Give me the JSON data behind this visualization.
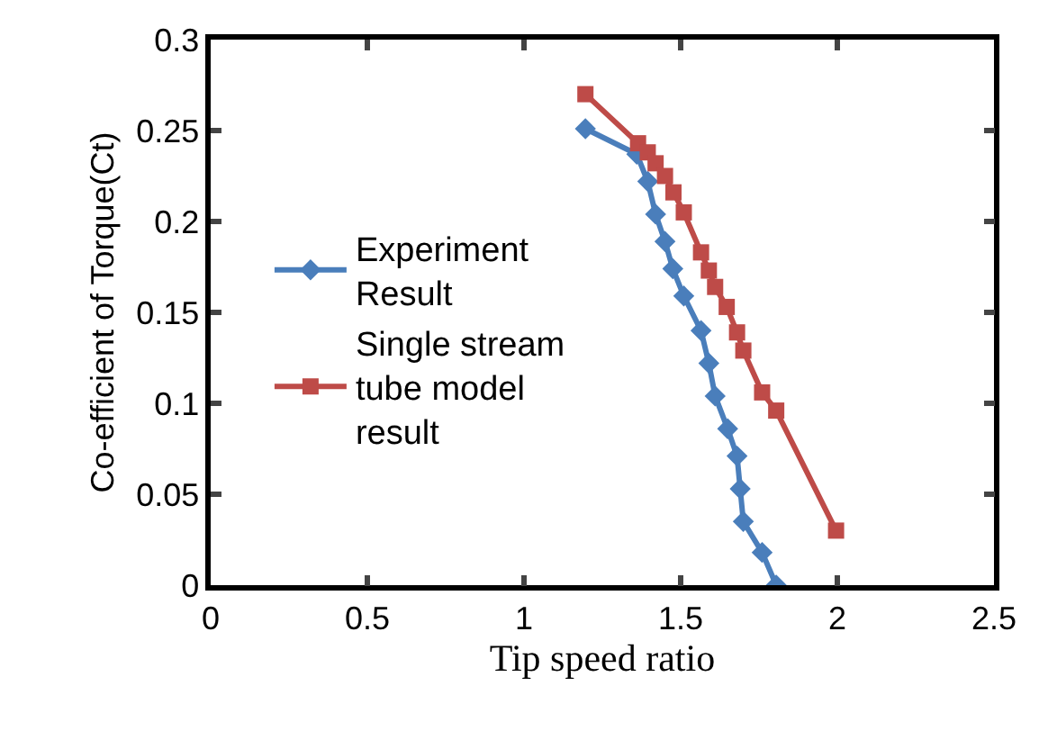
{
  "chart_data": {
    "type": "line",
    "xlabel": "Tip speed ratio",
    "ylabel": "Co-efficient of Torque(Ct)",
    "xlim": [
      0,
      2.5
    ],
    "xticks": [
      0,
      0.5,
      1,
      1.5,
      2,
      2.5
    ],
    "ylim": [
      0,
      0.3
    ],
    "yticks": [
      0,
      0.05,
      0.1,
      0.15,
      0.2,
      0.25,
      0.3
    ],
    "grid": false,
    "legend": "left",
    "series": [
      {
        "name": "Experiment Result",
        "color": "#4a7ebb",
        "marker": "diamond",
        "x": [
          1.196,
          1.36,
          1.395,
          1.42,
          1.45,
          1.475,
          1.51,
          1.565,
          1.59,
          1.61,
          1.65,
          1.68,
          1.69,
          1.7,
          1.76,
          1.805
        ],
        "values": [
          0.251,
          0.237,
          0.222,
          0.204,
          0.189,
          0.174,
          0.159,
          0.14,
          0.122,
          0.104,
          0.086,
          0.071,
          0.053,
          0.035,
          0.018,
          0
        ]
      },
      {
        "name": "Single stream tube model result",
        "color": "#be4b48",
        "marker": "square",
        "x": [
          1.196,
          1.364,
          1.395,
          1.42,
          1.45,
          1.477,
          1.51,
          1.565,
          1.59,
          1.61,
          1.647,
          1.68,
          1.7,
          1.76,
          1.805,
          1.996
        ],
        "values": [
          0.27,
          0.243,
          0.238,
          0.232,
          0.225,
          0.216,
          0.205,
          0.183,
          0.173,
          0.164,
          0.153,
          0.139,
          0.129,
          0.106,
          0.096,
          0.03
        ]
      }
    ]
  }
}
